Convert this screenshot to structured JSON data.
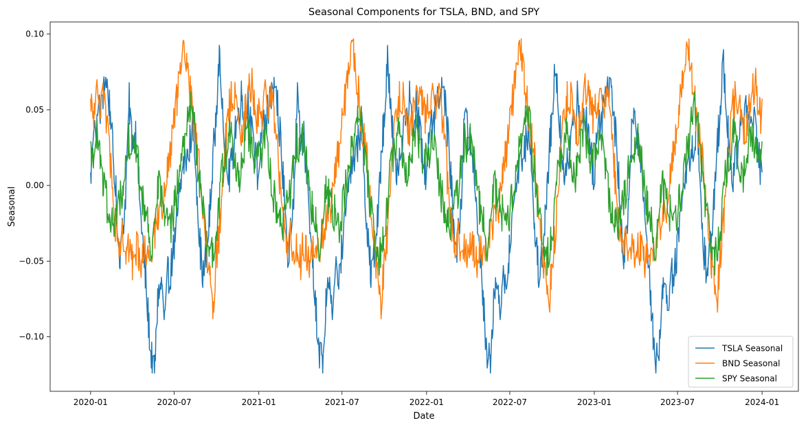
{
  "chart_data": {
    "type": "line",
    "title": "Seasonal Components for TSLA, BND, and SPY",
    "xlabel": "Date",
    "ylabel": "Seasonal",
    "xlim": [
      "2019-10-05",
      "2024-03-20"
    ],
    "ylim": [
      -0.136,
      0.108
    ],
    "x_ticks": [
      "2020-01",
      "2020-07",
      "2021-01",
      "2021-07",
      "2022-01",
      "2022-07",
      "2023-01",
      "2023-07",
      "2024-01"
    ],
    "y_ticks": [
      {
        "value": -0.1,
        "label": "−0.10"
      },
      {
        "value": -0.05,
        "label": "−0.05"
      },
      {
        "value": 0.0,
        "label": "0.00"
      },
      {
        "value": 0.05,
        "label": "0.05"
      },
      {
        "value": 0.1,
        "label": "0.10"
      }
    ],
    "grid": false,
    "legend_position": "lower-right",
    "period_start": "2020-01-01",
    "period_end": "2024-01-01",
    "cycle": "annual (repeats every year)",
    "series": [
      {
        "name": "TSLA Seasonal",
        "color": "#1f77b4",
        "one_year_pattern": {
          "date_offsets_in_year": [
            "01-01",
            "01-08",
            "01-15",
            "01-22",
            "01-29",
            "02-05",
            "02-12",
            "02-19",
            "02-26",
            "03-05",
            "03-12",
            "03-19",
            "03-26",
            "04-02",
            "04-09",
            "04-16",
            "04-23",
            "04-30",
            "05-07",
            "05-14",
            "05-21",
            "05-28",
            "06-04",
            "06-11",
            "06-18",
            "06-25",
            "07-02",
            "07-09",
            "07-16",
            "07-23",
            "07-30",
            "08-06",
            "08-13",
            "08-20",
            "08-27",
            "09-03",
            "09-10",
            "09-17",
            "09-24",
            "10-01",
            "10-08",
            "10-15",
            "10-22",
            "10-29",
            "11-05",
            "11-12",
            "11-19",
            "11-26",
            "12-03",
            "12-10",
            "12-17",
            "12-24",
            "12-31"
          ],
          "values": [
            0.003,
            0.045,
            0.04,
            0.052,
            0.06,
            0.07,
            0.05,
            0.02,
            -0.01,
            -0.045,
            -0.03,
            0.0,
            0.055,
            0.03,
            0.035,
            0.0,
            -0.03,
            -0.06,
            -0.09,
            -0.115,
            -0.12,
            -0.07,
            -0.065,
            -0.09,
            -0.06,
            -0.055,
            -0.04,
            -0.02,
            0.0,
            0.015,
            0.02,
            0.03,
            0.04,
            0.0,
            -0.04,
            -0.06,
            -0.045,
            -0.02,
            0.02,
            0.045,
            0.08,
            0.06,
            0.02,
            0.005,
            0.015,
            0.04,
            0.045,
            0.06,
            0.04,
            0.055,
            0.035,
            0.02,
            0.006
          ]
        }
      },
      {
        "name": "BND Seasonal",
        "color": "#ff7f0e",
        "one_year_pattern": {
          "date_offsets_in_year": [
            "01-01",
            "01-08",
            "01-15",
            "01-22",
            "01-29",
            "02-05",
            "02-12",
            "02-19",
            "02-26",
            "03-05",
            "03-12",
            "03-19",
            "03-26",
            "04-02",
            "04-09",
            "04-16",
            "04-23",
            "04-30",
            "05-07",
            "05-14",
            "05-21",
            "05-28",
            "06-04",
            "06-11",
            "06-18",
            "06-25",
            "07-02",
            "07-09",
            "07-16",
            "07-23",
            "07-30",
            "08-06",
            "08-13",
            "08-20",
            "08-27",
            "09-03",
            "09-10",
            "09-17",
            "09-24",
            "10-01",
            "10-08",
            "10-15",
            "10-22",
            "10-29",
            "11-05",
            "11-12",
            "11-19",
            "11-26",
            "12-03",
            "12-10",
            "12-17",
            "12-24",
            "12-31"
          ],
          "values": [
            0.05,
            0.045,
            0.06,
            0.055,
            0.065,
            0.04,
            0.02,
            -0.01,
            -0.03,
            -0.04,
            -0.035,
            -0.04,
            -0.045,
            -0.05,
            -0.04,
            -0.045,
            -0.05,
            -0.04,
            -0.045,
            -0.04,
            -0.03,
            -0.02,
            -0.015,
            -0.01,
            0.015,
            0.02,
            0.045,
            0.06,
            0.07,
            0.095,
            0.075,
            0.06,
            0.04,
            0.025,
            0.01,
            -0.02,
            -0.04,
            -0.06,
            -0.08,
            -0.05,
            -0.03,
            0.0,
            0.03,
            0.05,
            0.06,
            0.055,
            0.04,
            0.03,
            0.05,
            0.06,
            0.07,
            0.055,
            0.04
          ]
        }
      },
      {
        "name": "SPY Seasonal",
        "color": "#2ca02c",
        "one_year_pattern": {
          "date_offsets_in_year": [
            "01-01",
            "01-08",
            "01-15",
            "01-22",
            "01-29",
            "02-05",
            "02-12",
            "02-19",
            "02-26",
            "03-05",
            "03-12",
            "03-19",
            "03-26",
            "04-02",
            "04-09",
            "04-16",
            "04-23",
            "04-30",
            "05-07",
            "05-14",
            "05-21",
            "05-28",
            "06-04",
            "06-11",
            "06-18",
            "06-25",
            "07-02",
            "07-09",
            "07-16",
            "07-23",
            "07-30",
            "08-06",
            "08-13",
            "08-20",
            "08-27",
            "09-03",
            "09-10",
            "09-17",
            "09-24",
            "10-01",
            "10-08",
            "10-15",
            "10-22",
            "10-29",
            "11-05",
            "11-12",
            "11-19",
            "11-26",
            "12-03",
            "12-10",
            "12-17",
            "12-24",
            "12-31"
          ],
          "values": [
            0.02,
            0.025,
            0.03,
            0.02,
            0.0,
            -0.01,
            -0.03,
            -0.025,
            -0.02,
            -0.01,
            0.0,
            0.02,
            0.03,
            0.025,
            0.03,
            0.01,
            -0.01,
            -0.02,
            -0.03,
            -0.04,
            -0.02,
            0.0,
            -0.01,
            -0.015,
            -0.02,
            -0.025,
            -0.015,
            0.0,
            0.01,
            0.025,
            0.04,
            0.05,
            0.045,
            0.02,
            0.0,
            -0.02,
            -0.04,
            -0.05,
            -0.045,
            -0.03,
            -0.01,
            0.01,
            0.02,
            0.035,
            0.03,
            0.015,
            0.0,
            0.02,
            0.03,
            0.035,
            0.025,
            0.02,
            0.021
          ]
        }
      }
    ]
  }
}
